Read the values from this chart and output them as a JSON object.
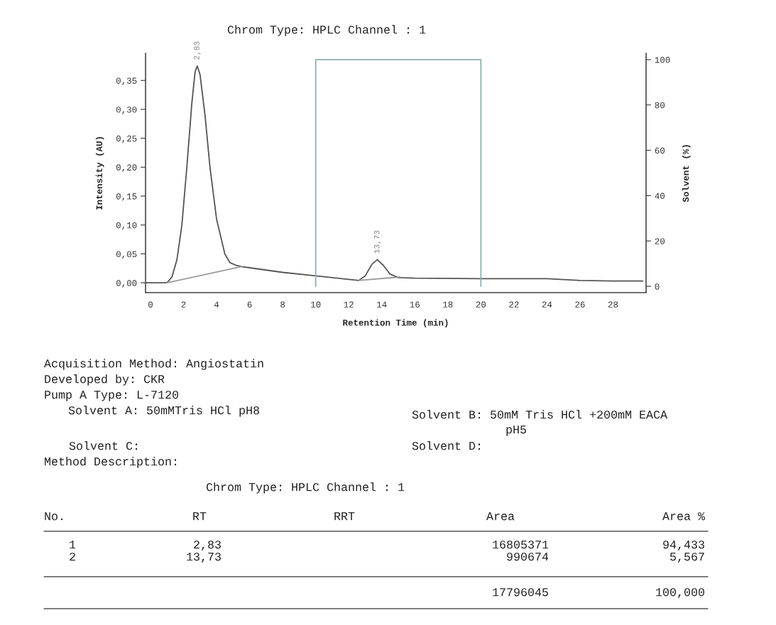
{
  "chart_data": {
    "type": "line",
    "title": "Chrom Type: HPLC Channel : 1",
    "xlabel": "Retention Time (min)",
    "ylabel": "Intensity (AU)",
    "y2label": "Solvent (%)",
    "series": [
      {
        "color": "#555555",
        "x": [
          -0.3,
          1.0,
          1.3,
          1.6,
          1.9,
          2.2,
          2.5,
          2.7,
          2.83,
          3.0,
          3.3,
          3.6,
          4.0,
          4.5,
          4.8,
          5.2,
          5.5,
          6.0,
          8.0,
          10.0,
          12.0,
          12.6,
          13.0,
          13.4,
          13.73,
          14.1,
          14.5,
          15.0,
          16.0,
          20.0,
          24.0,
          26.0,
          28.0,
          29.8
        ],
        "values": [
          0.0,
          0.0,
          0.01,
          0.04,
          0.1,
          0.2,
          0.31,
          0.365,
          0.375,
          0.36,
          0.29,
          0.2,
          0.11,
          0.05,
          0.035,
          0.03,
          0.028,
          0.026,
          0.018,
          0.012,
          0.006,
          0.004,
          0.012,
          0.032,
          0.04,
          0.03,
          0.015,
          0.009,
          0.008,
          0.007,
          0.007,
          0.004,
          0.003,
          0.003
        ]
      },
      {
        "color": "#999999",
        "x": [
          1.0,
          5.5
        ],
        "values": [
          0.0,
          0.028
        ]
      },
      {
        "color": "#999999",
        "x": [
          12.6,
          15.1
        ],
        "values": [
          0.004,
          0.01
        ]
      },
      {
        "color": "#8fb0b0",
        "axis": "y2",
        "x": [
          10,
          10,
          20,
          20
        ],
        "values": [
          0,
          100,
          100,
          0
        ]
      }
    ],
    "xlim": [
      -0.3,
      30
    ],
    "xticks": [
      0,
      2,
      4,
      6,
      8,
      10,
      12,
      14,
      16,
      18,
      20,
      22,
      24,
      26,
      28
    ],
    "ylim": [
      -0.017,
      0.397
    ],
    "yticks": [
      {
        "value": 0,
        "label": "0,00"
      },
      {
        "value": 0.05,
        "label": "0,05"
      },
      {
        "value": 0.1,
        "label": "0,10"
      },
      {
        "value": 0.15,
        "label": "0,15"
      },
      {
        "value": 0.2,
        "label": "0,20"
      },
      {
        "value": 0.25,
        "label": "0,25"
      },
      {
        "value": 0.3,
        "label": "0,30"
      },
      {
        "value": 0.35,
        "label": "0,35"
      }
    ],
    "y2lim": [
      -2.8,
      102.8
    ],
    "y2ticks": [
      0,
      20,
      40,
      60,
      80,
      100
    ],
    "grid": false,
    "legend": false,
    "annotations": [
      {
        "text": "2,83",
        "x": 2.83,
        "y": 0.375
      },
      {
        "text": "13,73",
        "x": 13.73,
        "y": 0.04
      },
      "Acquisition Method: Angiostatin",
      "Developed by: CKR",
      "Pump A Type: L-7120",
      "Solvent A: 50mMTris HCl pH8",
      "Solvent B: 50mM Tris HCl +200mM EACA",
      "pH5",
      "Solvent C:",
      "Solvent D:",
      "Method Description:",
      "Chrom Type: HPLC Channel : 1",
      "No.",
      "RT",
      "RRT",
      "Area",
      "Area %",
      "1",
      "2,83",
      "16805371",
      "94,433",
      "2",
      "13,73",
      "990674",
      "5,567",
      "17796045",
      "100,000"
    ]
  }
}
